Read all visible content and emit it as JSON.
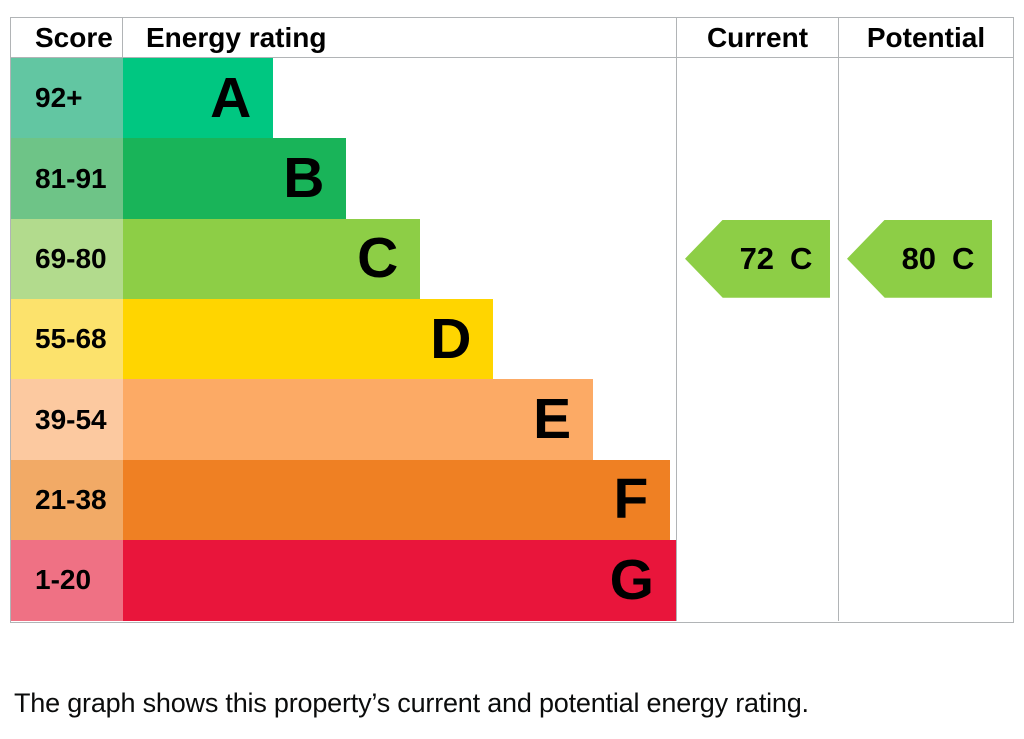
{
  "chart_data": {
    "type": "bar",
    "chart_kind": "epc-energy-rating",
    "orientation": "horizontal",
    "columns": [
      "Score",
      "Energy rating",
      "Current",
      "Potential"
    ],
    "bands": [
      {
        "score": "92+",
        "letter": "A",
        "bar_color": "#00c781",
        "score_color": "#62c6a2",
        "width_pct": 22.6
      },
      {
        "score": "81-91",
        "letter": "B",
        "bar_color": "#19b459",
        "score_color": "#6ec487",
        "width_pct": 33.6
      },
      {
        "score": "69-80",
        "letter": "C",
        "bar_color": "#8dce46",
        "score_color": "#b2db8d",
        "width_pct": 44.7
      },
      {
        "score": "55-68",
        "letter": "D",
        "bar_color": "#ffd500",
        "score_color": "#fce26c",
        "width_pct": 55.7
      },
      {
        "score": "39-54",
        "letter": "E",
        "bar_color": "#fcaa65",
        "score_color": "#fcc9a0",
        "width_pct": 70.7
      },
      {
        "score": "21-38",
        "letter": "F",
        "bar_color": "#ef8023",
        "score_color": "#f2aa66",
        "width_pct": 82.3
      },
      {
        "score": "1-20",
        "letter": "G",
        "bar_color": "#e9153b",
        "score_color": "#ef7184",
        "width_pct": 94.2
      }
    ],
    "current": {
      "value": "72",
      "letter": "C",
      "band_index": 2,
      "arrow_color": "#8dce46"
    },
    "potential": {
      "value": "80",
      "letter": "C",
      "band_index": 2,
      "arrow_color": "#8dce46"
    },
    "caption": "The graph shows this property’s current and potential energy rating.",
    "border_color": "#b1b4b6"
  }
}
